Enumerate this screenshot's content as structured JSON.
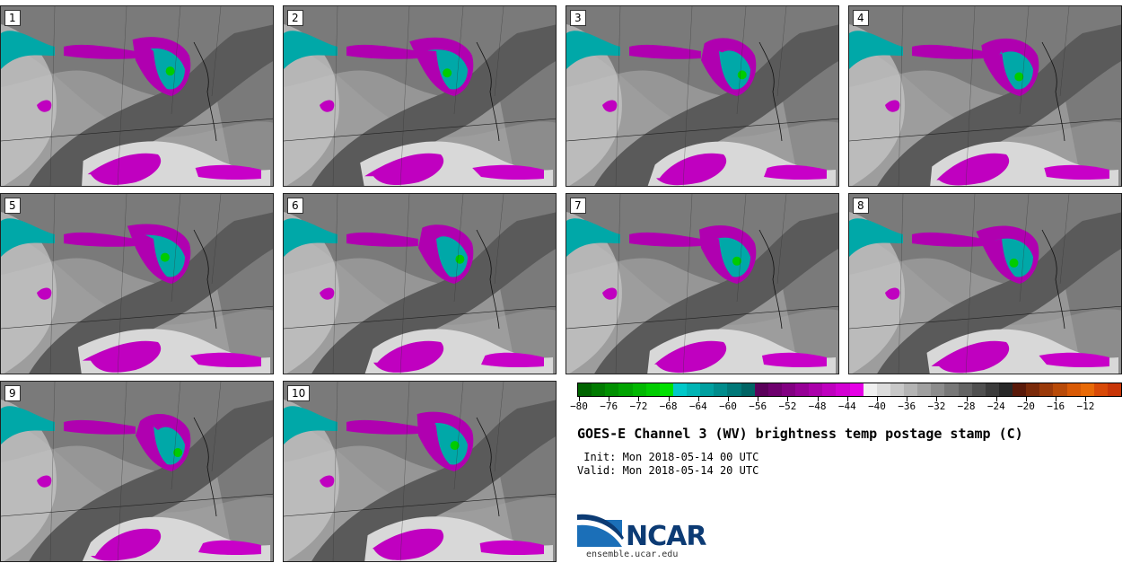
{
  "panels": [
    {
      "label": "1"
    },
    {
      "label": "2"
    },
    {
      "label": "3"
    },
    {
      "label": "4"
    },
    {
      "label": "5"
    },
    {
      "label": "6"
    },
    {
      "label": "7"
    },
    {
      "label": "8"
    },
    {
      "label": "9"
    },
    {
      "label": "10"
    }
  ],
  "colorbar": {
    "colors": [
      "#006400",
      "#007a00",
      "#008f00",
      "#00a300",
      "#00b800",
      "#00cc00",
      "#00e000",
      "#00c8c8",
      "#00b4b4",
      "#00a0a0",
      "#008c8c",
      "#007878",
      "#006464",
      "#5a005a",
      "#6e006e",
      "#820082",
      "#960096",
      "#aa00aa",
      "#be00be",
      "#d200d2",
      "#e600e6",
      "#f0f0f0",
      "#dcdcdc",
      "#c8c8c8",
      "#b4b4b4",
      "#a0a0a0",
      "#8c8c8c",
      "#787878",
      "#646464",
      "#505050",
      "#3c3c3c",
      "#282828",
      "#5a1a0a",
      "#7a2a0a",
      "#9a3a0a",
      "#b84a08",
      "#d85a06",
      "#e86a08",
      "#d84a08",
      "#c83608"
    ],
    "ticks": [
      "−80",
      "−76",
      "−72",
      "−68",
      "−64",
      "−60",
      "−56",
      "−52",
      "−48",
      "−44",
      "−40",
      "−36",
      "−32",
      "−28",
      "−24",
      "−20",
      "−16",
      "−12"
    ]
  },
  "title": "GOES-E Channel 3 (WV) brightness temp postage stamp (C)",
  "init": " Init: Mon 2018-05-14 00 UTC",
  "valid": "Valid: Mon 2018-05-14 20 UTC",
  "logo": {
    "name": "NCAR",
    "url": "ensemble.ucar.edu"
  },
  "map_colors": {
    "cold": "#00a8a8",
    "mid": "#c800c8",
    "dry": "#6e6e6e",
    "moist": "#dcdcdc"
  }
}
